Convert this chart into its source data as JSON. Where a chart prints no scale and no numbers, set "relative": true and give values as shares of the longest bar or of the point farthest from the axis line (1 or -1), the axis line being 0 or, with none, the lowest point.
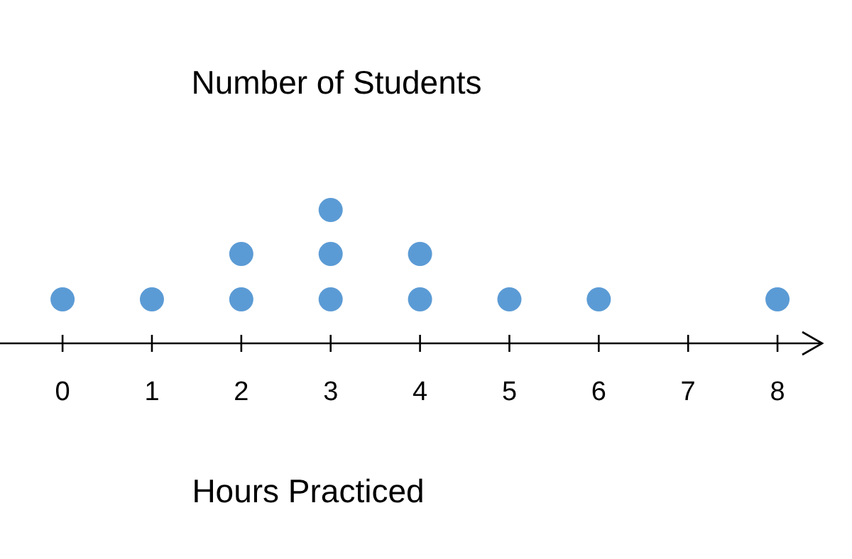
{
  "chart_data": {
    "type": "scatter",
    "title": "Number of Students",
    "xlabel": "Hours Practiced",
    "relative": true,
    "color": "#5b9bd5",
    "marker": "circle",
    "grid": false,
    "tick_labels": "x",
    "x": [
      0,
      1,
      2,
      2,
      3,
      3,
      3,
      4,
      4,
      5,
      6,
      8
    ],
    "values": [
      0.33,
      0.33,
      0.33,
      0.67,
      0.33,
      0.67,
      1,
      0.33,
      0.67,
      0.33,
      0.33,
      0.33
    ],
    "xlim": [
      -0.7,
      8.5
    ],
    "xticks": [
      0,
      1,
      2,
      3,
      4,
      5,
      6,
      7,
      8
    ]
  }
}
